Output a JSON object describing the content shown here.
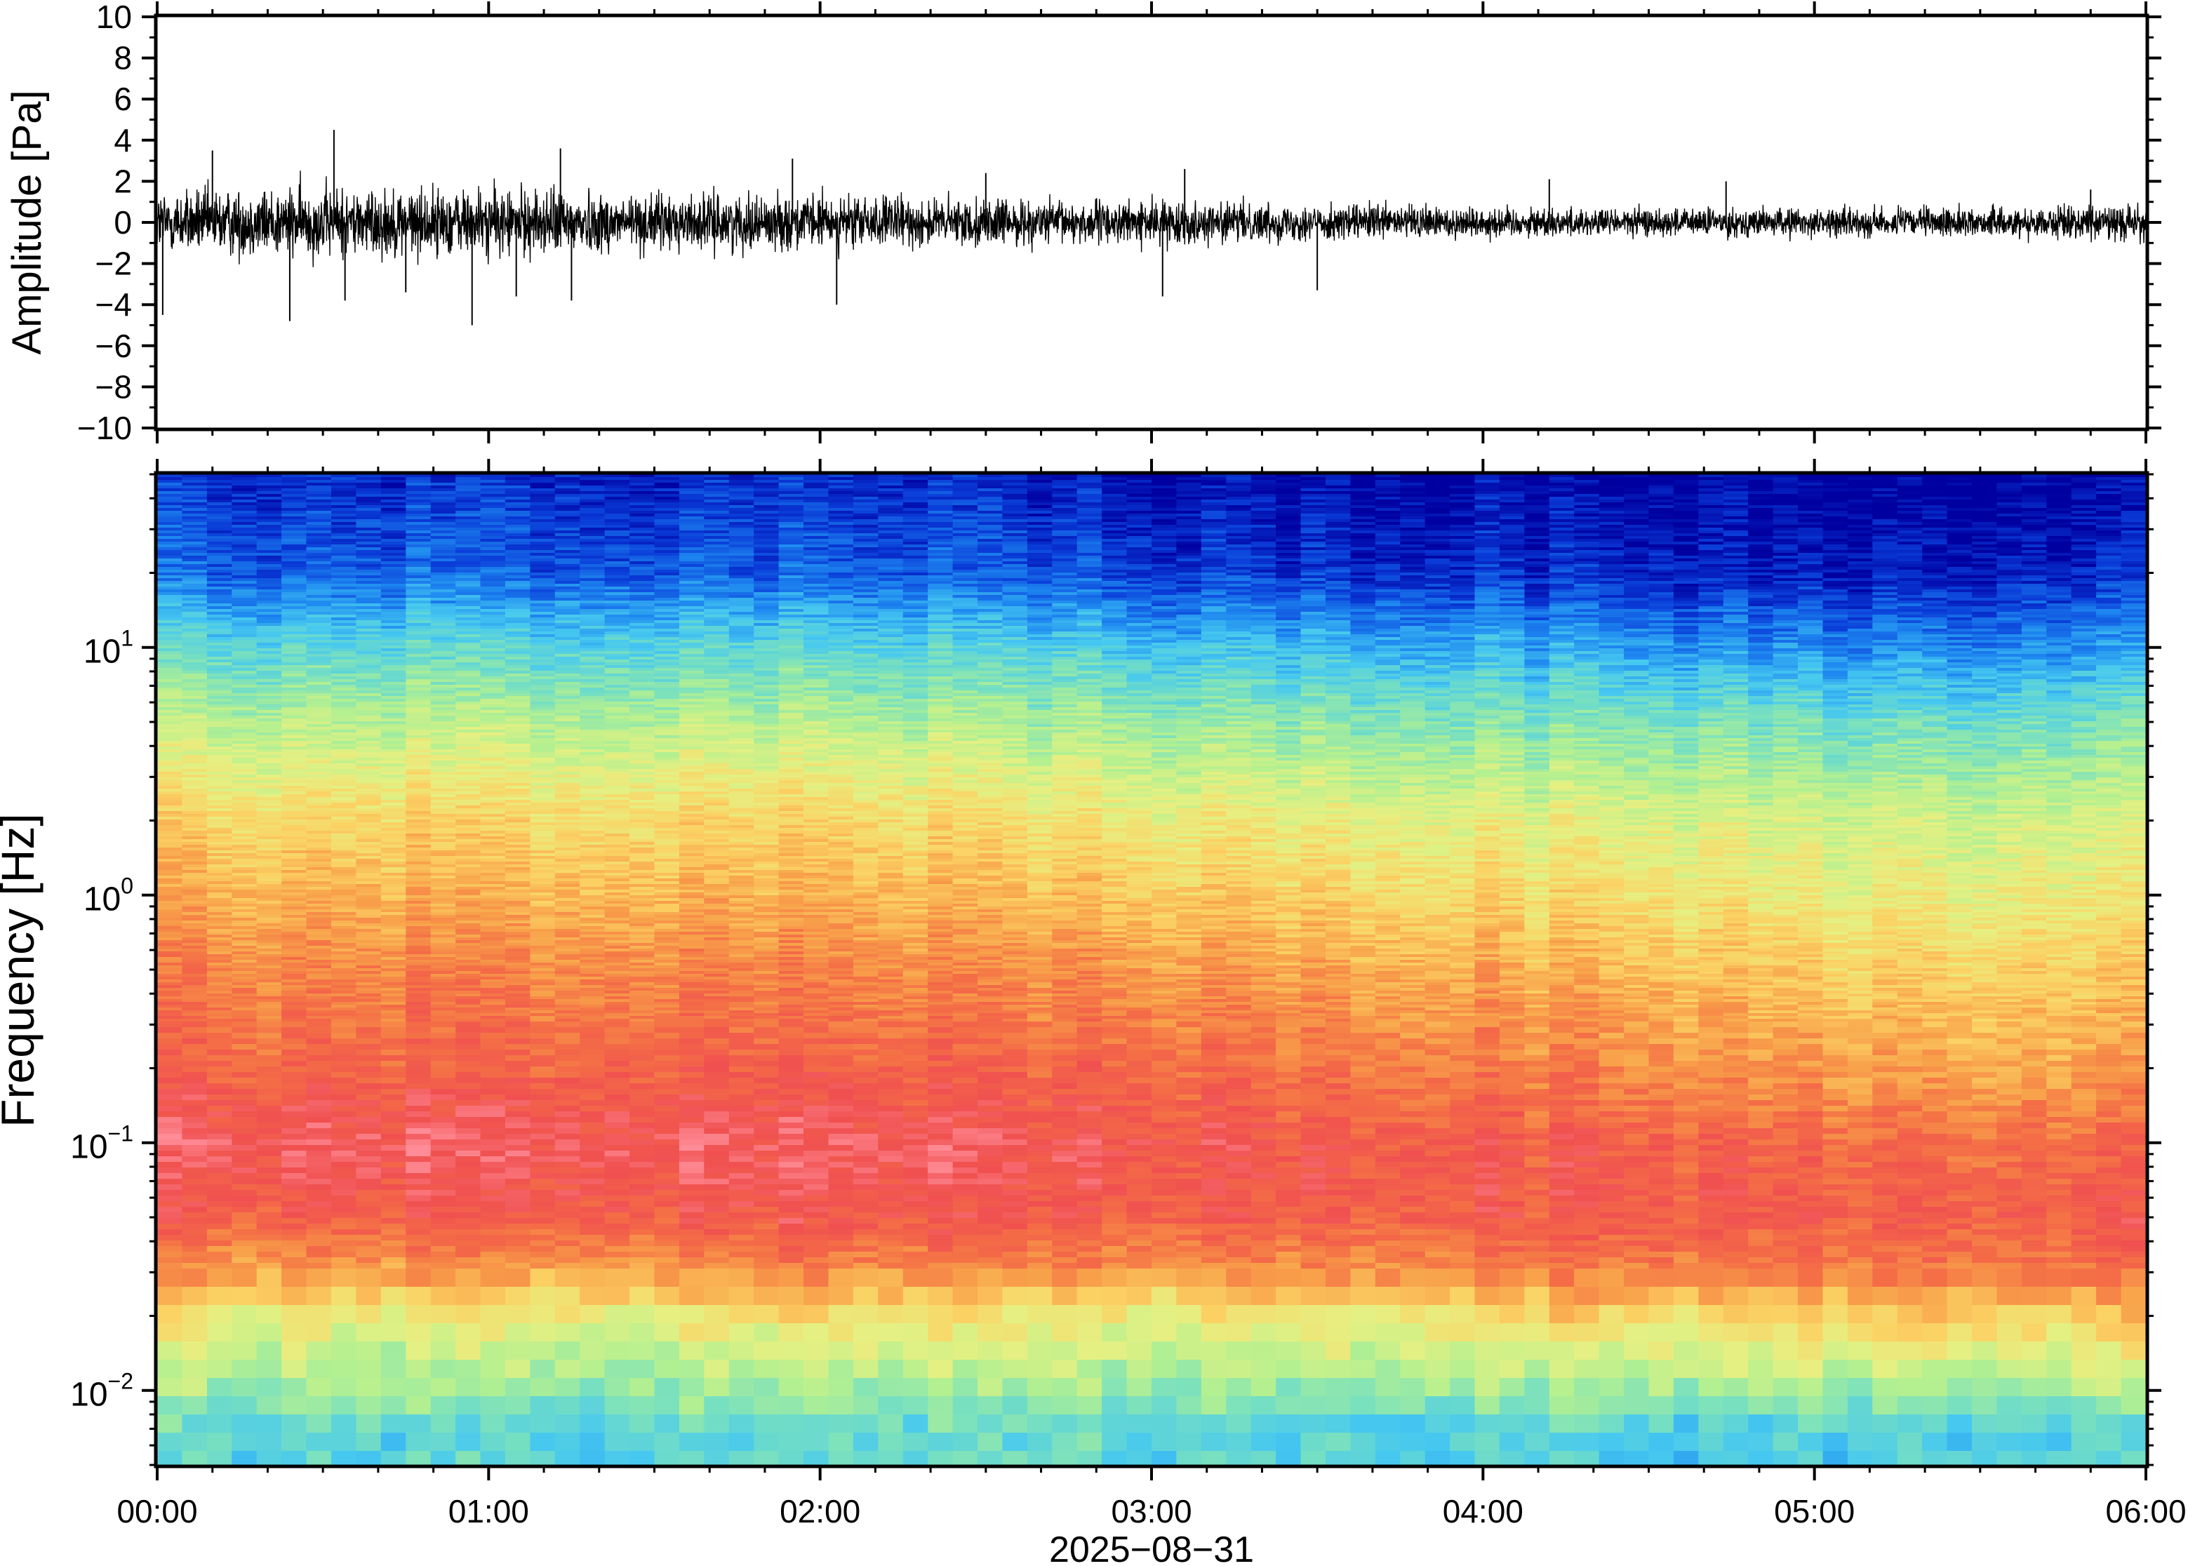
{
  "chart_data": [
    {
      "type": "line",
      "panel": "waveform",
      "ylabel": "Amplitude [Pa]",
      "xlim": [
        "00:00",
        "06:00"
      ],
      "ylim": [
        -10,
        10
      ],
      "ytick_values": [
        10,
        8,
        6,
        4,
        2,
        0,
        -2,
        -4,
        -6,
        -8,
        -10
      ],
      "ytick_labels": [
        "10",
        "8",
        "6",
        "4",
        "2",
        "0",
        "−2",
        "−4",
        "−6",
        "−8",
        "−10"
      ],
      "grid": false,
      "series": [
        {
          "color": "#000000",
          "envelope_time_h": [
            0.0,
            0.25,
            0.5,
            0.75,
            1.0,
            1.25,
            1.5,
            1.75,
            2.0,
            2.25,
            2.5,
            2.75,
            3.0,
            3.25,
            3.5,
            3.75,
            4.0,
            4.25,
            4.5,
            4.75,
            5.0,
            5.25,
            5.5,
            5.75,
            6.0
          ],
          "envelope_amplitude_pa": [
            1.8,
            1.9,
            2.0,
            1.9,
            1.9,
            1.8,
            1.6,
            1.5,
            1.5,
            1.4,
            1.3,
            1.2,
            1.2,
            1.1,
            1.0,
            1.0,
            0.9,
            0.8,
            0.8,
            0.8,
            0.8,
            0.8,
            0.8,
            0.9,
            1.0
          ],
          "spikes": [
            {
              "time": "00:01",
              "amplitude_pa": -4.5
            },
            {
              "time": "00:10",
              "amplitude_pa": 3.5
            },
            {
              "time": "00:24",
              "amplitude_pa": -4.8
            },
            {
              "time": "00:32",
              "amplitude_pa": 4.5
            },
            {
              "time": "00:34",
              "amplitude_pa": -3.8
            },
            {
              "time": "00:45",
              "amplitude_pa": -3.4
            },
            {
              "time": "00:57",
              "amplitude_pa": -5.0
            },
            {
              "time": "01:05",
              "amplitude_pa": -3.6
            },
            {
              "time": "01:13",
              "amplitude_pa": 3.6
            },
            {
              "time": "01:15",
              "amplitude_pa": -3.8
            },
            {
              "time": "01:55",
              "amplitude_pa": 3.1
            },
            {
              "time": "02:03",
              "amplitude_pa": -4.0
            },
            {
              "time": "02:30",
              "amplitude_pa": 2.4
            },
            {
              "time": "03:02",
              "amplitude_pa": -3.6
            },
            {
              "time": "03:06",
              "amplitude_pa": 2.6
            },
            {
              "time": "03:30",
              "amplitude_pa": -3.3
            },
            {
              "time": "04:12",
              "amplitude_pa": 2.1
            },
            {
              "time": "04:44",
              "amplitude_pa": 2.0
            },
            {
              "time": "05:50",
              "amplitude_pa": 1.6
            }
          ]
        }
      ]
    },
    {
      "type": "heatmap",
      "panel": "spectrogram",
      "ylabel": "Frequency [Hz]",
      "xlabel": "2025−08−31",
      "y_scale": "log",
      "ylim": [
        0.005,
        50
      ],
      "ytick_values": [
        10,
        1,
        0.1,
        0.01
      ],
      "ytick_bases": [
        "10",
        "10",
        "10",
        "10"
      ],
      "ytick_exponents": [
        "1",
        "0",
        "−1",
        "−2"
      ],
      "xtick_labels": [
        "00:00",
        "01:00",
        "02:00",
        "03:00",
        "04:00",
        "05:00",
        "06:00"
      ],
      "colormap": "rainbow (blue = low power, red/pink = high power)",
      "color_stops": [
        "#0000a0",
        "#0a3cd8",
        "#1e88f0",
        "#46c8f0",
        "#78e0c0",
        "#b4f090",
        "#e6f082",
        "#fbd264",
        "#f8a04a",
        "#f46e46",
        "#f05050",
        "#ff8c96"
      ],
      "time_columns_h": [
        0.0,
        0.5,
        1.0,
        1.5,
        2.0,
        2.5,
        3.0,
        3.5,
        4.0,
        4.5,
        5.0,
        5.5,
        6.0
      ],
      "freq_rows_hz": [
        50,
        20,
        10,
        5,
        2,
        1,
        0.5,
        0.2,
        0.1,
        0.05,
        0.03,
        0.02,
        0.01,
        0.007
      ],
      "relative_power_level_0_to_11": [
        [
          0.8,
          1.5,
          3.6,
          5.2,
          6.9,
          7.7,
          8.6,
          9.3,
          10.3,
          9.4,
          8.0,
          6.4,
          4.8,
          3.6
        ],
        [
          0.8,
          1.5,
          3.6,
          5.2,
          6.9,
          7.7,
          8.6,
          9.4,
          10.4,
          9.6,
          8.1,
          6.3,
          4.7,
          3.6
        ],
        [
          0.8,
          1.5,
          3.6,
          5.2,
          6.9,
          7.7,
          8.6,
          9.4,
          10.4,
          9.7,
          8.1,
          6.2,
          4.6,
          3.5
        ],
        [
          0.7,
          1.5,
          3.6,
          5.2,
          6.9,
          7.7,
          8.6,
          9.5,
          10.4,
          9.7,
          8.2,
          6.3,
          4.6,
          3.6
        ],
        [
          0.7,
          1.4,
          3.5,
          5.1,
          6.8,
          7.6,
          8.5,
          9.4,
          10.3,
          9.8,
          8.4,
          6.5,
          4.8,
          3.7
        ],
        [
          0.6,
          1.3,
          3.3,
          4.9,
          6.6,
          7.4,
          8.3,
          9.2,
          10.1,
          9.7,
          8.3,
          6.4,
          4.7,
          3.6
        ],
        [
          0.3,
          1.1,
          3.1,
          4.7,
          6.4,
          7.3,
          8.3,
          9.3,
          10.0,
          9.6,
          8.2,
          6.3,
          4.6,
          3.6
        ],
        [
          0.2,
          0.9,
          2.9,
          4.5,
          6.2,
          7.0,
          8.0,
          9.0,
          9.8,
          9.6,
          8.4,
          6.5,
          4.6,
          3.4
        ],
        [
          0.1,
          0.7,
          2.6,
          4.2,
          6.0,
          6.8,
          7.7,
          8.7,
          9.6,
          9.6,
          8.5,
          6.8,
          4.8,
          3.5
        ],
        [
          0.0,
          0.6,
          2.3,
          4.1,
          5.8,
          6.5,
          7.4,
          8.4,
          9.4,
          9.6,
          8.6,
          6.8,
          4.7,
          3.3
        ],
        [
          0.0,
          0.5,
          2.2,
          4.0,
          5.7,
          6.3,
          7.2,
          8.2,
          9.3,
          9.7,
          8.8,
          7.0,
          4.9,
          3.4
        ],
        [
          0.0,
          0.6,
          2.2,
          4.0,
          5.7,
          6.3,
          7.1,
          8.0,
          9.1,
          9.7,
          8.9,
          7.2,
          5.0,
          3.4
        ],
        [
          0.0,
          0.7,
          2.3,
          4.1,
          5.7,
          6.3,
          7.1,
          8.0,
          9.2,
          9.7,
          8.9,
          7.1,
          5.0,
          3.5
        ]
      ]
    }
  ]
}
